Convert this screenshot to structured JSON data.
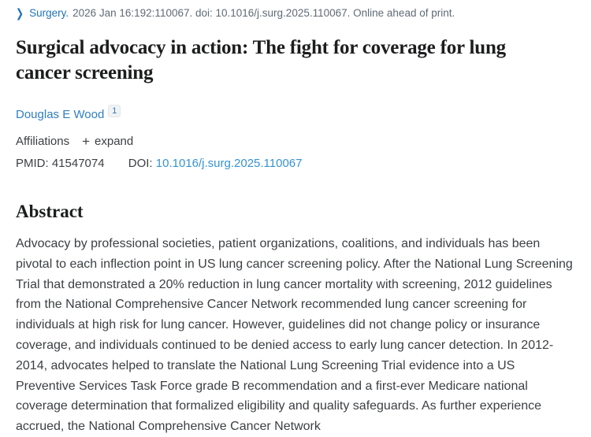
{
  "citation": {
    "journal_label": "Surgery.",
    "details": "2026 Jan 16:192:110067. doi: 10.1016/j.surg.2025.110067. Online ahead of print."
  },
  "title": "Surgical advocacy in action: The fight for coverage for lung cancer screening",
  "authors": [
    {
      "name": "Douglas E Wood",
      "affiliation_sup": "1"
    }
  ],
  "affiliations": {
    "label": "Affiliations",
    "expand_label": "expand",
    "plus_glyph": "+"
  },
  "identifiers": {
    "pmid_label": "PMID:",
    "pmid_value": "41547074",
    "doi_label": "DOI:",
    "doi_value": "10.1016/j.surg.2025.110067"
  },
  "abstract": {
    "heading": "Abstract",
    "text": "Advocacy by professional societies, patient organizations, coalitions, and individuals has been pivotal to each inflection point in US lung cancer screening policy. After the National Lung Screening Trial that demonstrated a 20% reduction in lung cancer mortality with screening, 2012 guidelines from the National Comprehensive Cancer Network recommended lung cancer screening for individuals at high risk for lung cancer. However, guidelines did not change policy or insurance coverage, and individuals continued to be denied access to early lung cancer detection. In 2012-2014, advocates helped to translate the National Lung Screening Trial evidence into a US Preventive Services Task Force grade B recommendation and a first-ever Medicare national coverage determination that formalized eligibility and quality safeguards. As further experience accrued, the National Comprehensive Cancer Network"
  },
  "icons": {
    "chevron_right": "❯"
  },
  "colors": {
    "link_blue": "#1f72b8",
    "author_blue": "#2e7fc1",
    "doi_blue": "#3693d1",
    "secondary_text": "#5f6b76",
    "body_text": "#3c4043",
    "heading_text": "#1c1d1e"
  }
}
